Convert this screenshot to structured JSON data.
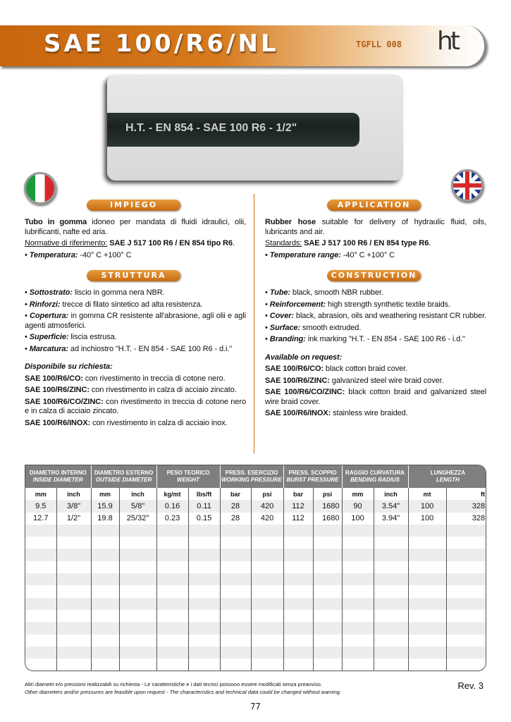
{
  "header": {
    "title": "SAE 100/R6/NL",
    "code": "TGFLL 008",
    "logo": "ht",
    "brand_color": "#c8650e"
  },
  "photo": {
    "hose_marking": "H.T. - EN 854 - SAE  100 R6 - 1/2\""
  },
  "italian": {
    "impiego_label": "IMPIEGO",
    "intro_bold": "Tubo in gomma",
    "intro": " idoneo per mandata di fluidi idraulici, olii, lubrificanti, nafte ed aria.",
    "norm_label": "Normative di riferimento:",
    "norm_value": " SAE J 517 100 R6 / EN 854 tipo R6",
    "temp_label": "Temperatura:",
    "temp_value": " -40° C +100° C",
    "struttura_label": "STRUTTURA",
    "items": [
      {
        "k": "Sottostrato:",
        "v": " liscio in gomma nera NBR."
      },
      {
        "k": "Rinforzi:",
        "v": " trecce di filato sintetico ad alta resistenza."
      },
      {
        "k": "Copertura:",
        "v": " in gomma CR resistente all'abrasione, agli olii e agli agenti atmosferici."
      },
      {
        "k": "Superficie:",
        "v": " liscia estrusa."
      },
      {
        "k": "Marcatura:",
        "v": " ad inchiostro \"H.T. - EN 854 - SAE 100 R6 - d.i.\""
      }
    ],
    "avail_label": "Disponibile su richiesta:",
    "avail": [
      {
        "k": "SAE 100/R6/CO:",
        "v": " con rivestimento in treccia di cotone nero."
      },
      {
        "k": "SAE 100/R6/ZINC:",
        "v": " con rivestimento in calza di acciaio zincato."
      },
      {
        "k": "SAE 100/R6/CO/ZINC:",
        "v": " con rivestimento in treccia di cotone nero e in calza di acciaio zincato."
      },
      {
        "k": "SAE 100/R6/INOX:",
        "v": " con rivestimento in calza di acciaio inox."
      }
    ]
  },
  "english": {
    "application_label": "APPLICATION",
    "intro_bold": "Rubber hose",
    "intro": " suitable for delivery of hydraulic fluid, oils, lubricants and air.",
    "norm_label": "Standards:",
    "norm_value": " SAE J 517 100 R6 / EN 854 type R6",
    "temp_label": "Temperature range:",
    "temp_value": " -40° C +100° C",
    "construction_label": "CONSTRUCTION",
    "items": [
      {
        "k": "Tube:",
        "v": " black, smooth NBR rubber."
      },
      {
        "k": "Reinforcement:",
        "v": " high strength synthetic textile braids."
      },
      {
        "k": "Cover:",
        "v": " black, abrasion, oils and weathering resistant CR rubber."
      },
      {
        "k": "Surface:",
        "v": " smooth extruded."
      },
      {
        "k": "Branding:",
        "v": " ink marking \"H.T. - EN 854 - SAE 100 R6 - i.d.\""
      }
    ],
    "avail_label": "Available on request:",
    "avail": [
      {
        "k": "SAE 100/R6/CO:",
        "v": " black cotton braid cover."
      },
      {
        "k": "SAE 100/R6/ZINC:",
        "v": " galvanized steel wire braid cover."
      },
      {
        "k": "SAE 100/R6/CO/ZINC:",
        "v": " black cotton braid and galvanized steel wire braid cover."
      },
      {
        "k": "SAE 100/R6/INOX:",
        "v": " stainless wire braided."
      }
    ]
  },
  "table": {
    "groups": [
      {
        "it": "DIAMETRO INTERNO",
        "en": "INSIDE DIAMETER"
      },
      {
        "it": "DIAMETRO ESTERNO",
        "en": "OUTSIDE DIAMETER"
      },
      {
        "it": "PESO TEORICO",
        "en": "WEIGHT"
      },
      {
        "it": "PRESS. ESERCIZIO",
        "en": "WORKING PRESSURE"
      },
      {
        "it": "PRESS. SCOPPIO",
        "en": "BURST PRESSURE"
      },
      {
        "it": "RAGGIO CURVATURA",
        "en": "BENDING RADIUS"
      },
      {
        "it": "LUNGHEZZA",
        "en": "LENGTH"
      }
    ],
    "units": [
      "mm",
      "inch",
      "mm",
      "inch",
      "kg/mt",
      "lbs/ft",
      "bar",
      "psi",
      "bar",
      "psi",
      "mm",
      "inch",
      "mt",
      "ft"
    ],
    "rows": [
      [
        "9.5",
        "3/8\"",
        "15.9",
        "5/8\"",
        "0.16",
        "0.11",
        "28",
        "420",
        "112",
        "1680",
        "90",
        "3.54\"",
        "100",
        "328"
      ],
      [
        "12.7",
        "1/2\"",
        "19.8",
        "25/32\"",
        "0.23",
        "0.15",
        "28",
        "420",
        "112",
        "1680",
        "100",
        "3.94\"",
        "100",
        "328"
      ]
    ]
  },
  "footer": {
    "note_it": "Altri diametri e/o pressioni realizzabili su richiesta - Le caratteristiche e i dati tecnici possono essere modificati senza preavviso.",
    "note_en": "Other diameters and/or pressures are feasible upon request - The characteristics and technical data could be changed without warning.",
    "revision": "Rev. 3",
    "page_number": "77"
  }
}
